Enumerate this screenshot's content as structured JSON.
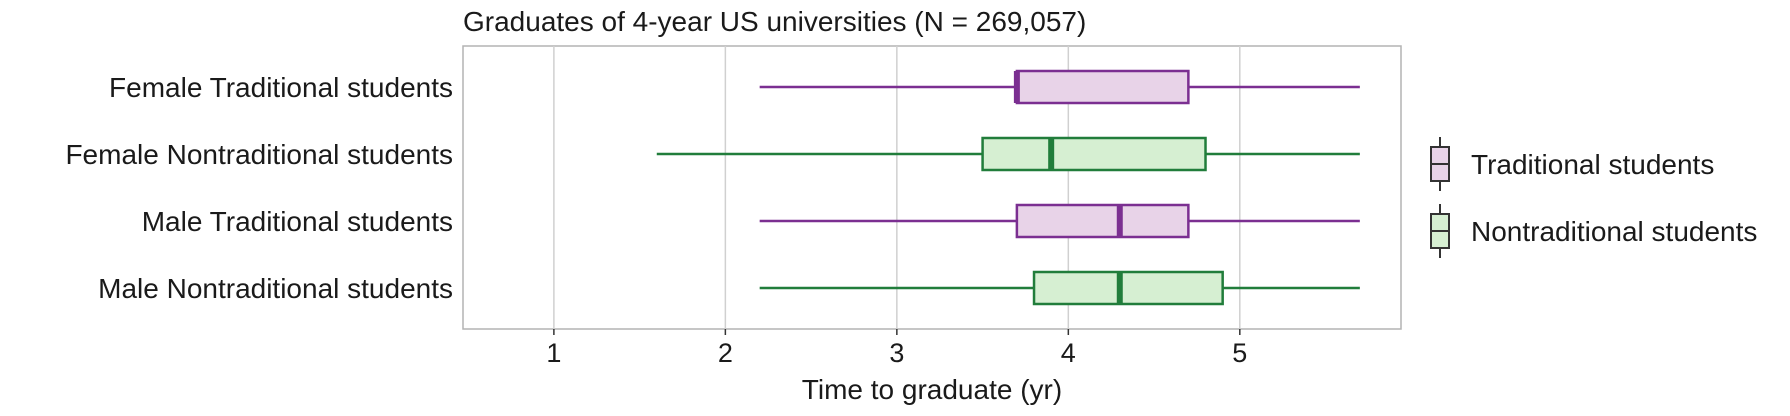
{
  "chart_data": {
    "type": "boxplot",
    "title": "Graduates of 4-year US universities (N = 269,057)",
    "xlabel": "Time to graduate (yr)",
    "ylabel": "",
    "xlim": [
      0.47,
      5.94
    ],
    "xticks": [
      1,
      2,
      3,
      4,
      5
    ],
    "grid": "vertical",
    "legend_position": "right",
    "series": [
      {
        "name": "Traditional students",
        "color": "#7b2f91",
        "fill": "#e8d3e8"
      },
      {
        "name": "Nontraditional students",
        "color": "#217d3b",
        "fill": "#d6efd2"
      }
    ],
    "rows": [
      {
        "label": "Female Traditional students",
        "series": "Traditional students",
        "whisker_low": 2.2,
        "q1": 3.7,
        "median": 3.7,
        "q3": 4.7,
        "whisker_high": 5.7
      },
      {
        "label": "Female Nontraditional students",
        "series": "Nontraditional students",
        "whisker_low": 1.6,
        "q1": 3.5,
        "median": 3.9,
        "q3": 4.8,
        "whisker_high": 5.7
      },
      {
        "label": "Male Traditional students",
        "series": "Traditional students",
        "whisker_low": 2.2,
        "q1": 3.7,
        "median": 4.3,
        "q3": 4.7,
        "whisker_high": 5.7
      },
      {
        "label": "Male Nontraditional students",
        "series": "Nontraditional students",
        "whisker_low": 2.2,
        "q1": 3.8,
        "median": 4.3,
        "q3": 4.9,
        "whisker_high": 5.7
      }
    ]
  }
}
